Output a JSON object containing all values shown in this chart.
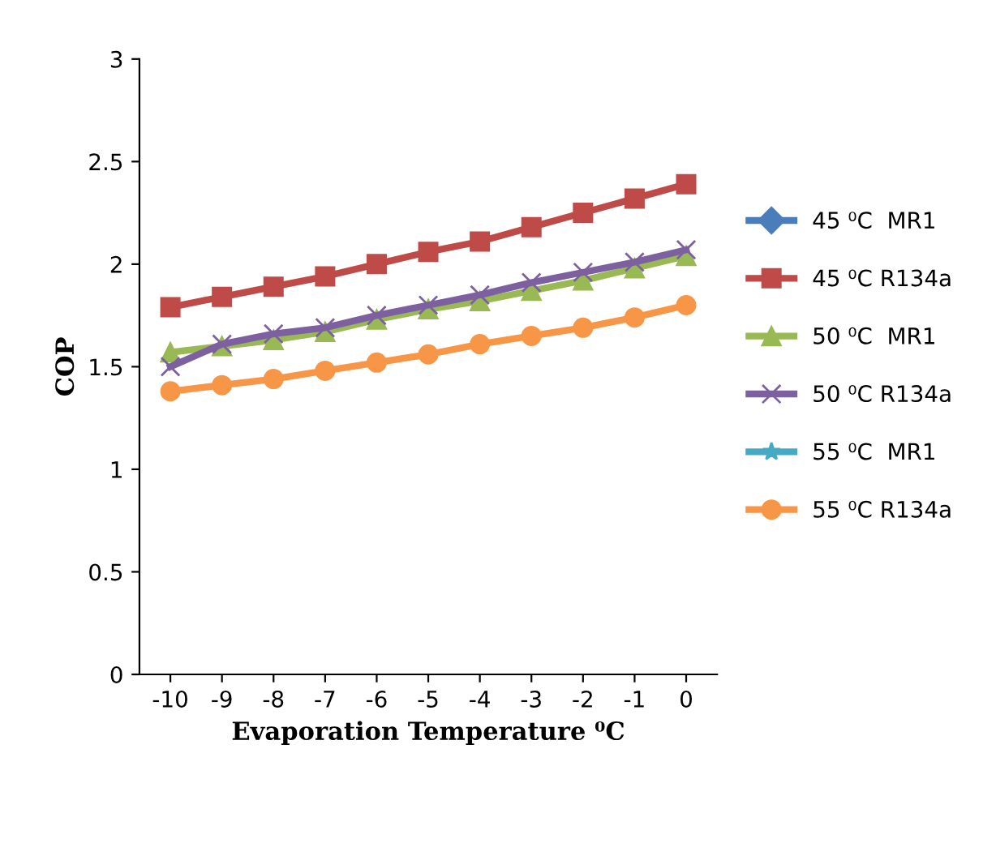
{
  "chart_data": {
    "type": "line",
    "xlabel": "Evaporation Temperature ⁰C",
    "ylabel": "COP",
    "x": [
      -10,
      -9,
      -8,
      -7,
      -6,
      -5,
      -4,
      -3,
      -2,
      -1,
      0
    ],
    "xlim": [
      -10.6,
      0.6
    ],
    "xticks": [
      -10,
      -9,
      -8,
      -7,
      -6,
      -5,
      -4,
      -3,
      -2,
      -1,
      0
    ],
    "ylim": [
      0,
      3
    ],
    "yticks": [
      0,
      0.5,
      1,
      1.5,
      2,
      2.5,
      3
    ],
    "grid": false,
    "legend": "right",
    "series": [
      {
        "name": "45 ⁰C  MR1",
        "color": "#4a7ebb",
        "marker": "diamond",
        "values": [
          null,
          null,
          null,
          null,
          null,
          null,
          null,
          null,
          null,
          null,
          null
        ]
      },
      {
        "name": "45 ⁰C R134a",
        "color": "#be4b48",
        "marker": "square",
        "values": [
          1.79,
          1.84,
          1.89,
          1.94,
          2.0,
          2.06,
          2.11,
          2.18,
          2.25,
          2.32,
          2.39
        ]
      },
      {
        "name": "50 ⁰C  MR1",
        "color": "#98b954",
        "marker": "triangle",
        "values": [
          1.57,
          1.6,
          1.63,
          1.67,
          1.73,
          1.78,
          1.82,
          1.87,
          1.92,
          1.98,
          2.04
        ]
      },
      {
        "name": "50 ⁰C R134a",
        "color": "#7d60a0",
        "marker": "cross",
        "values": [
          1.5,
          1.61,
          1.66,
          1.69,
          1.75,
          1.8,
          1.85,
          1.91,
          1.96,
          2.01,
          2.07
        ]
      },
      {
        "name": "55 ⁰C  MR1",
        "color": "#46aac5",
        "marker": "star",
        "values": [
          null,
          null,
          null,
          null,
          null,
          null,
          null,
          null,
          null,
          null,
          null
        ]
      },
      {
        "name": "55 ⁰C R134a",
        "color": "#f79646",
        "marker": "circle",
        "values": [
          1.38,
          1.41,
          1.44,
          1.48,
          1.52,
          1.56,
          1.61,
          1.65,
          1.69,
          1.74,
          1.8
        ]
      }
    ]
  }
}
